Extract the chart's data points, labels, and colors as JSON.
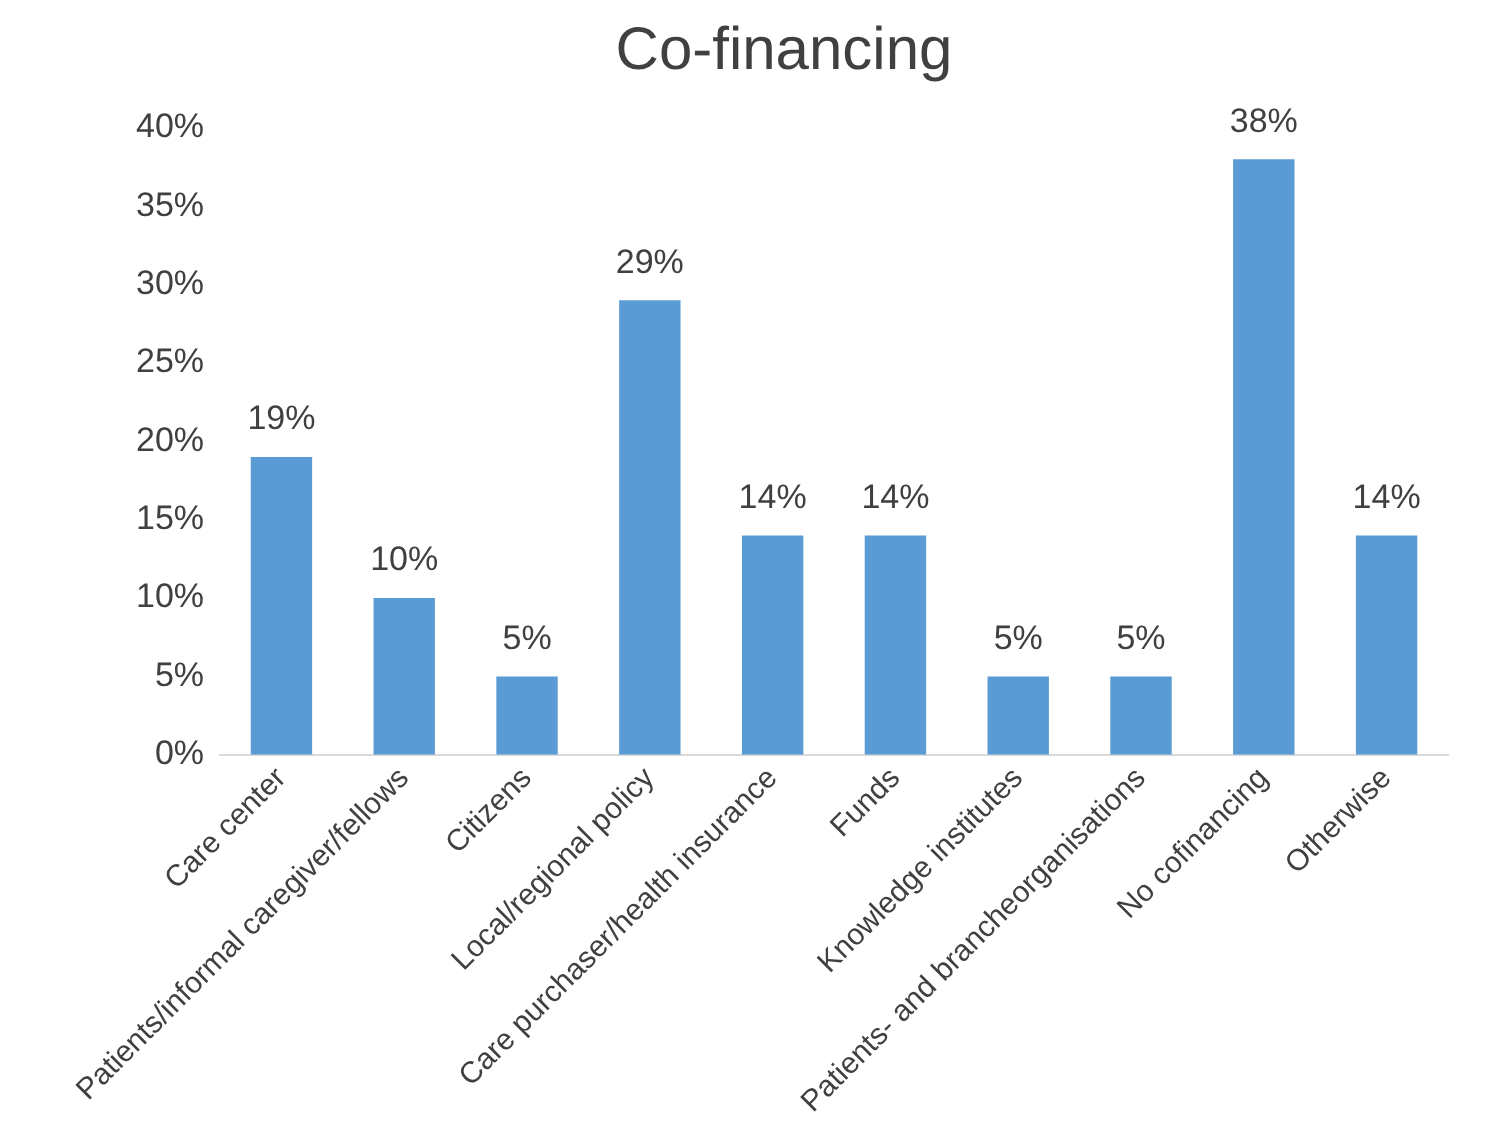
{
  "chart_data": {
    "type": "bar",
    "title": "Co-financing",
    "categories": [
      "Care center",
      "Patients/informal caregiver/fellows",
      "Citizens",
      "Local/regional policy",
      "Care purchaser/health insurance",
      "Funds",
      "Knowledge institutes",
      "Patients- and brancheorganisations",
      "No cofinancing",
      "Otherwise"
    ],
    "values": [
      19,
      10,
      5,
      29,
      14,
      14,
      5,
      5,
      38,
      14
    ],
    "color": "#5b9bd5",
    "value_labels": [
      "19%",
      "10%",
      "5%",
      "29%",
      "14%",
      "14%",
      "5%",
      "5%",
      "38%",
      "14%"
    ],
    "ylim": [
      0,
      40
    ],
    "yticks": [
      {
        "value": 0,
        "label": "0%"
      },
      {
        "value": 5,
        "label": "5%"
      },
      {
        "value": 10,
        "label": "10%"
      },
      {
        "value": 15,
        "label": "15%"
      },
      {
        "value": 20,
        "label": "20%"
      },
      {
        "value": 25,
        "label": "25%"
      },
      {
        "value": 30,
        "label": "30%"
      },
      {
        "value": 35,
        "label": "35%"
      },
      {
        "value": 40,
        "label": "40%"
      }
    ],
    "grid": false,
    "legend": false
  }
}
